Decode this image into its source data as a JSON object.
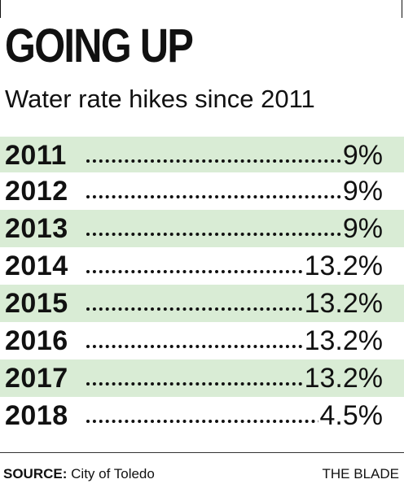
{
  "chart_data": {
    "type": "table",
    "title": "GOING UP",
    "subtitle": "Water rate hikes since 2011",
    "rows": [
      {
        "year": "2011",
        "value": "9%",
        "number": 9
      },
      {
        "year": "2012",
        "value": "9%",
        "number": 9
      },
      {
        "year": "2013",
        "value": "9%",
        "number": 9
      },
      {
        "year": "2014",
        "value": "13.2%",
        "number": 13.2
      },
      {
        "year": "2015",
        "value": "13.2%",
        "number": 13.2
      },
      {
        "year": "2016",
        "value": "13.2%",
        "number": 13.2
      },
      {
        "year": "2017",
        "value": "13.2%",
        "number": 13.2
      },
      {
        "year": "2018",
        "value": "4.5%",
        "number": 4.5
      }
    ],
    "row_shading_color": "#d9ecd5"
  },
  "footer": {
    "source_label": "SOURCE:",
    "source_text": "City of Toledo",
    "credit": "THE BLADE"
  }
}
